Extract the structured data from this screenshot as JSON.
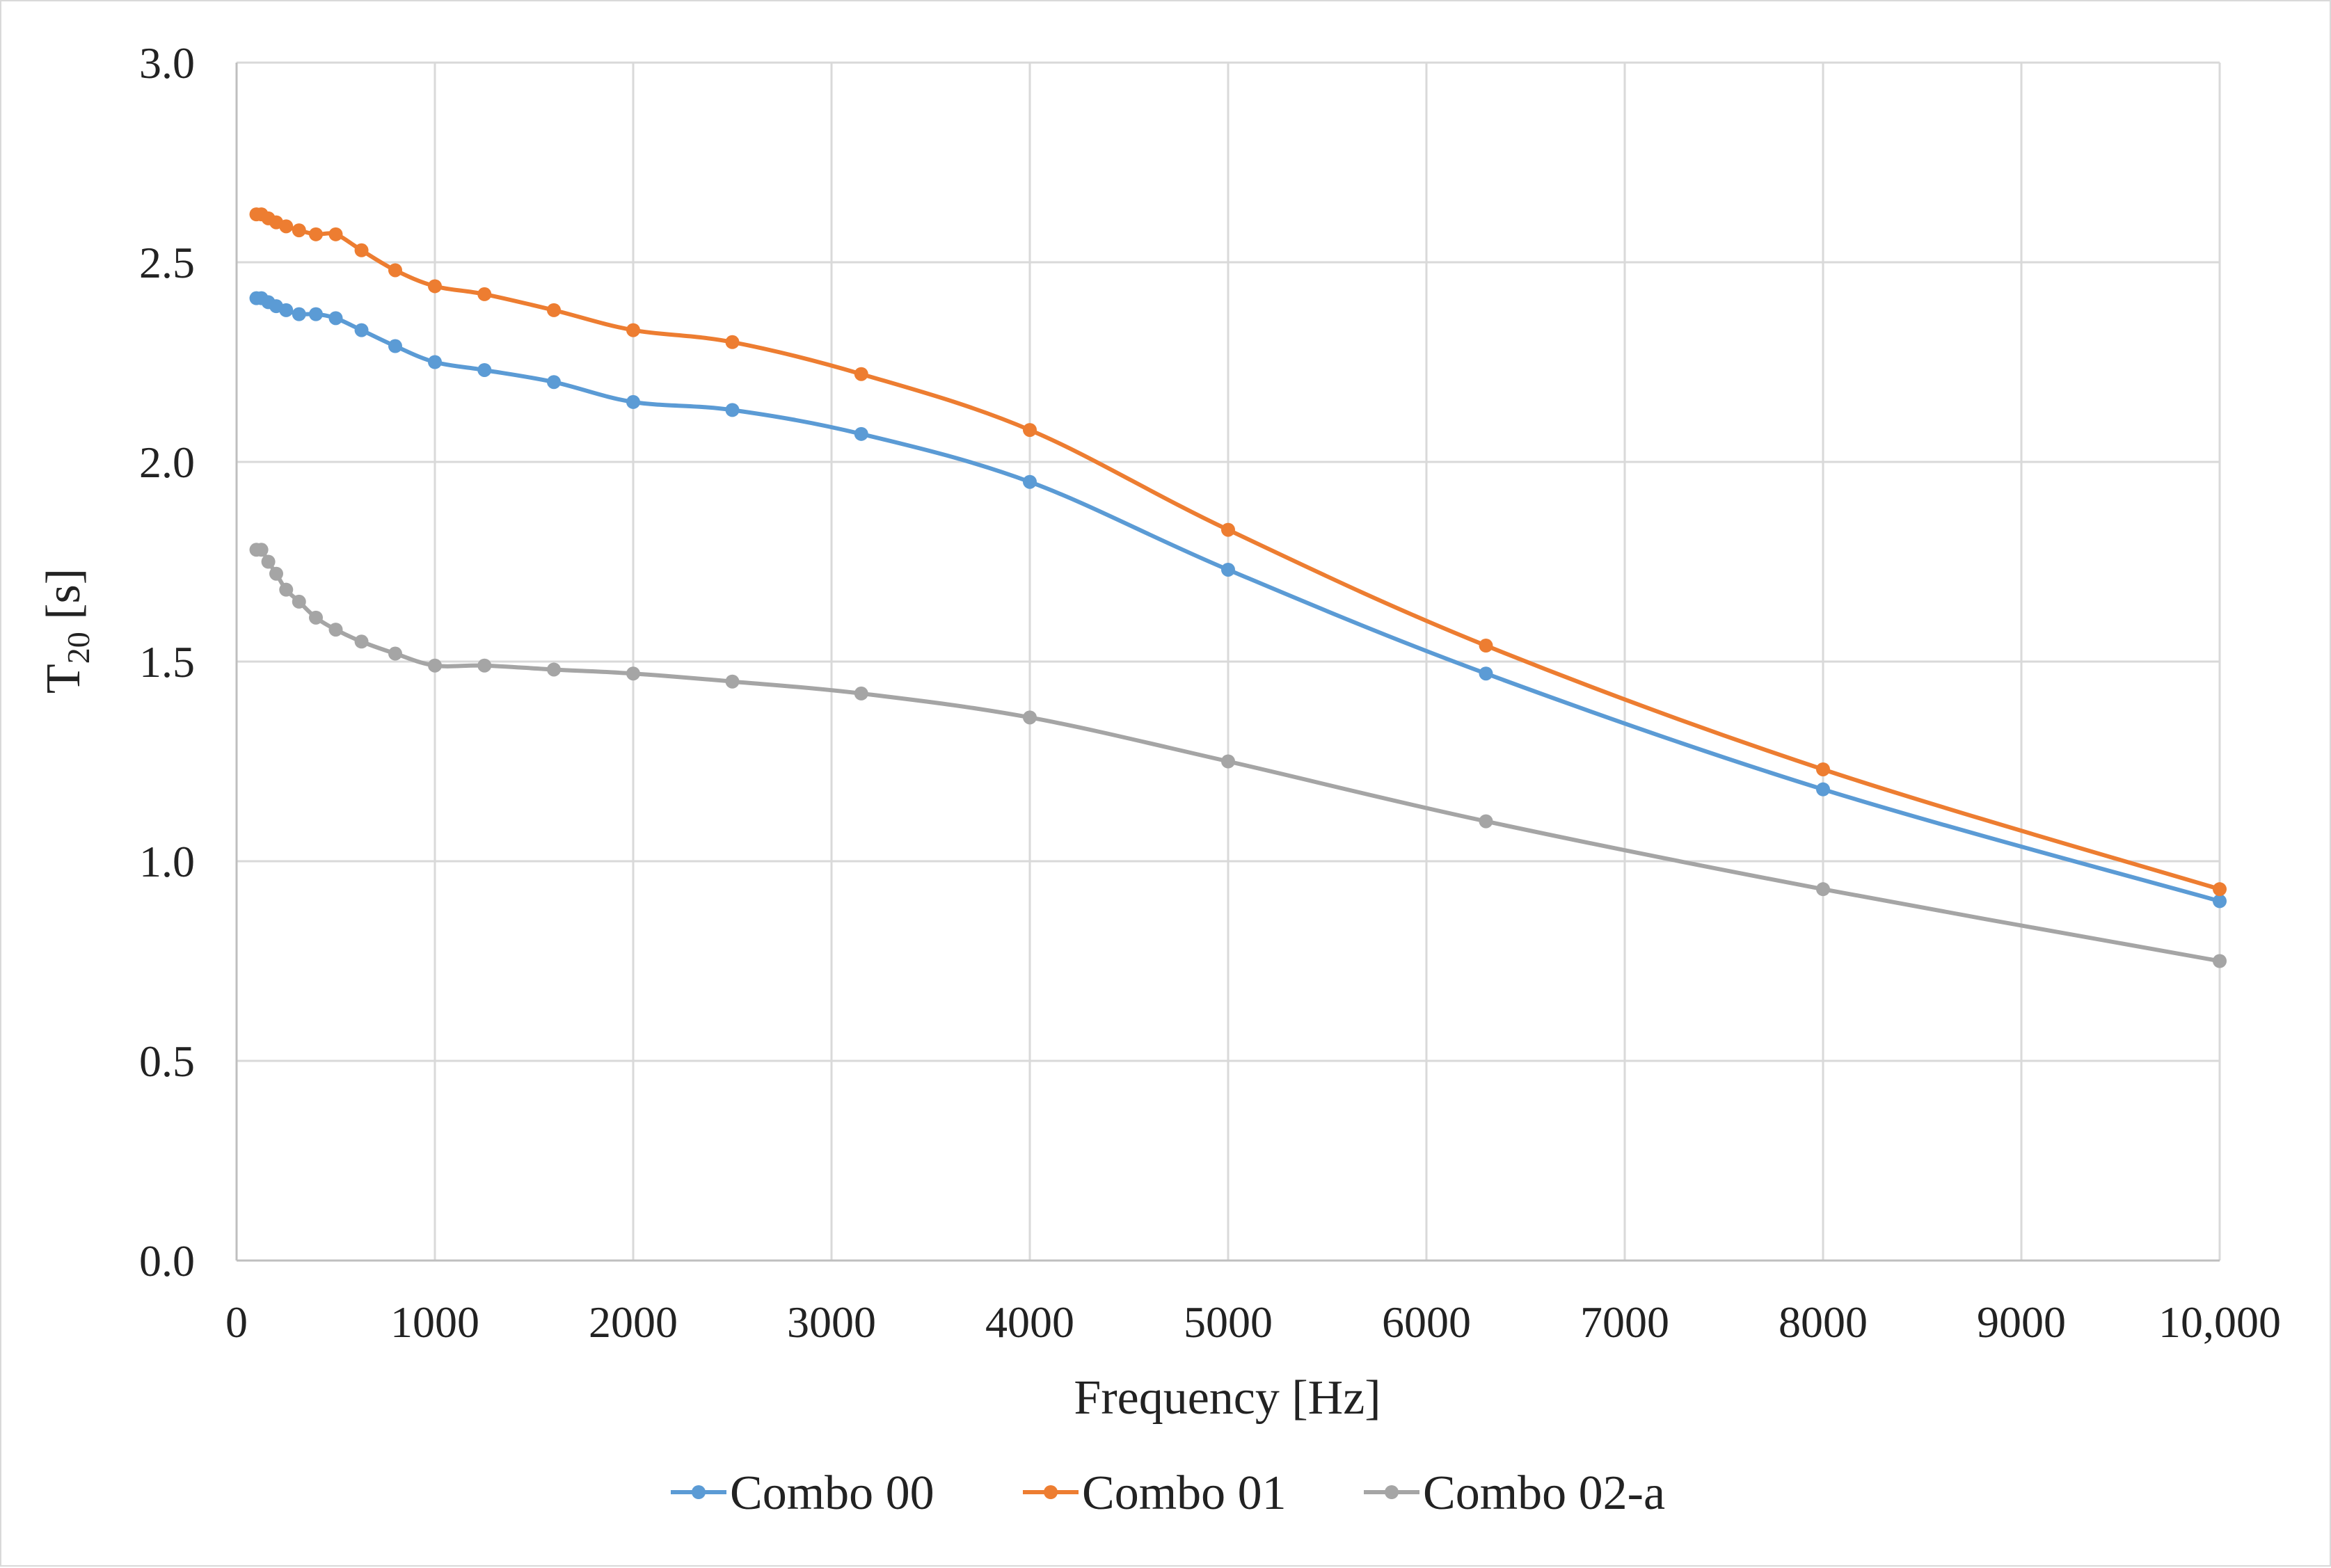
{
  "chart_data": {
    "type": "line",
    "title": "",
    "xlabel": "Frequency [Hz]",
    "ylabel_main": "T",
    "ylabel_sub": "20",
    "ylabel_rest": " [s]",
    "xlim": [
      0,
      10000
    ],
    "ylim": [
      0,
      3.0
    ],
    "xticks": [
      0,
      1000,
      2000,
      3000,
      4000,
      5000,
      6000,
      7000,
      8000,
      9000,
      10000
    ],
    "xtick_labels": [
      "0",
      "1000",
      "2000",
      "3000",
      "4000",
      "5000",
      "6000",
      "7000",
      "8000",
      "9000",
      "10,000"
    ],
    "yticks": [
      0,
      0.5,
      1.0,
      1.5,
      2.0,
      2.5,
      3.0
    ],
    "ytick_labels": [
      "0.0",
      "0.5",
      "1.0",
      "1.5",
      "2.0",
      "2.5",
      "3.0"
    ],
    "grid": true,
    "legend_position": "bottom-center",
    "x": [
      100,
      125,
      160,
      200,
      250,
      315,
      400,
      500,
      630,
      800,
      1000,
      1250,
      1600,
      2000,
      2500,
      3150,
      4000,
      5000,
      6300,
      8000,
      10000
    ],
    "series": [
      {
        "name": "Combo 00",
        "color": "#5b9bd5",
        "values": [
          2.41,
          2.41,
          2.4,
          2.39,
          2.38,
          2.37,
          2.37,
          2.36,
          2.33,
          2.29,
          2.25,
          2.23,
          2.2,
          2.15,
          2.13,
          2.07,
          1.95,
          1.73,
          1.47,
          1.18,
          0.9
        ]
      },
      {
        "name": "Combo 01",
        "color": "#ed7d31",
        "values": [
          2.62,
          2.62,
          2.61,
          2.6,
          2.59,
          2.58,
          2.57,
          2.57,
          2.53,
          2.48,
          2.44,
          2.42,
          2.38,
          2.33,
          2.3,
          2.22,
          2.08,
          1.83,
          1.54,
          1.23,
          0.93
        ]
      },
      {
        "name": "Combo 02-a",
        "color": "#a5a5a5",
        "values": [
          1.78,
          1.78,
          1.75,
          1.72,
          1.68,
          1.65,
          1.61,
          1.58,
          1.55,
          1.52,
          1.49,
          1.49,
          1.48,
          1.47,
          1.45,
          1.42,
          1.36,
          1.25,
          1.1,
          0.93,
          0.75
        ]
      }
    ]
  }
}
